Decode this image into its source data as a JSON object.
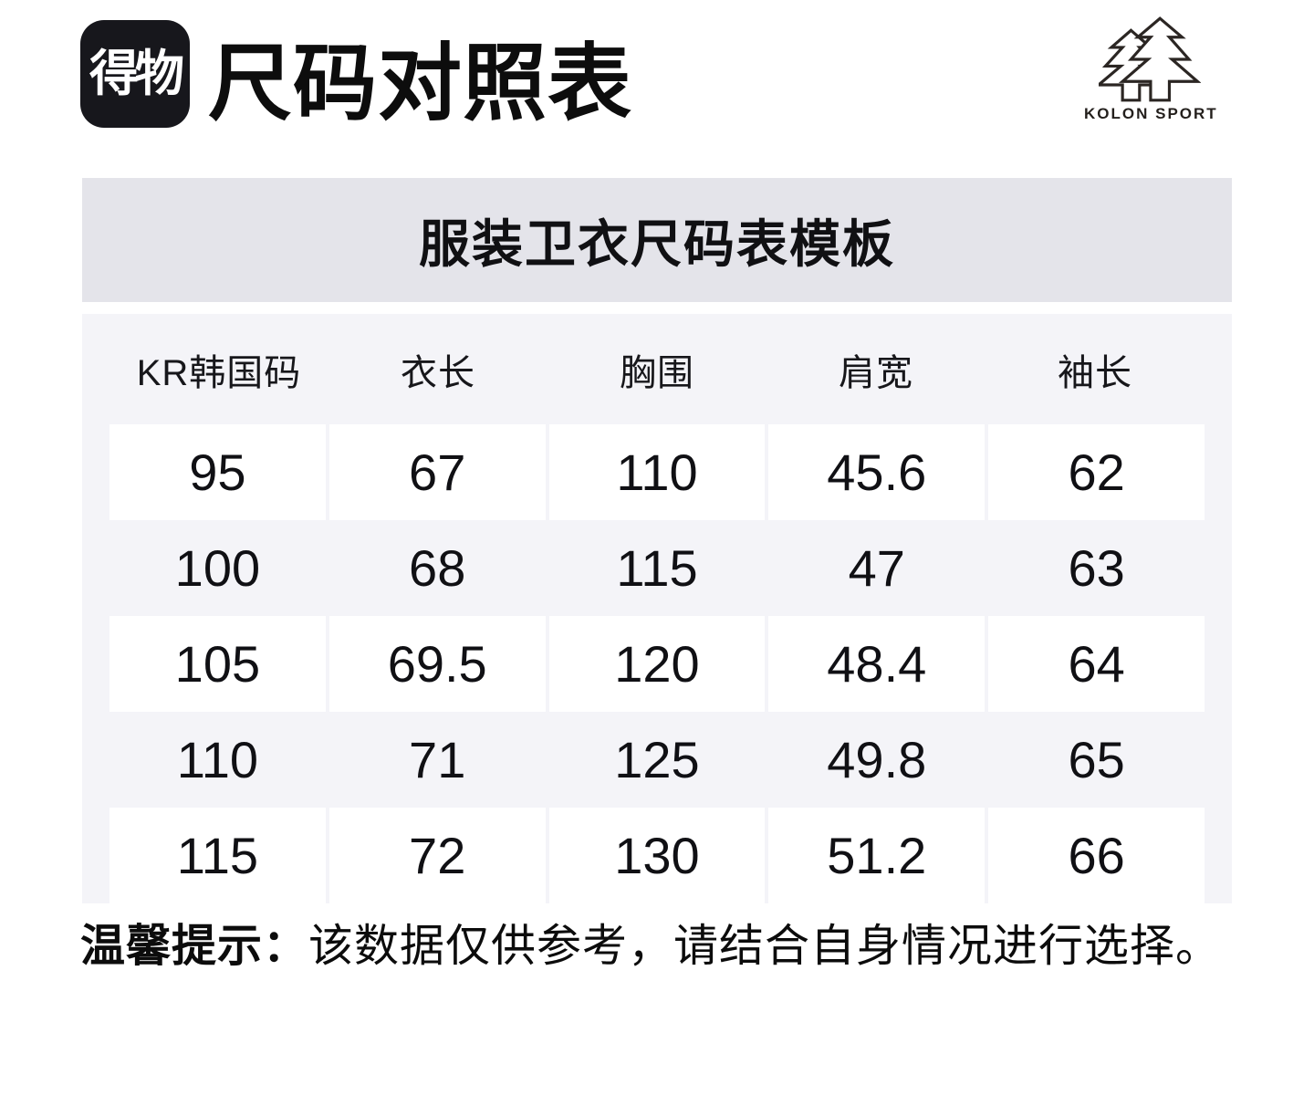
{
  "header": {
    "logo_text": "得物",
    "title": "尺码对照表",
    "brand_name": "KOLON SPORT"
  },
  "banner": {
    "title": "服装卫衣尺码表模板"
  },
  "table": {
    "columns": [
      "KR韩国码",
      "衣长",
      "胸围",
      "肩宽",
      "袖长"
    ],
    "rows": [
      [
        "95",
        "67",
        "110",
        "45.6",
        "62"
      ],
      [
        "100",
        "68",
        "115",
        "47",
        "63"
      ],
      [
        "105",
        "69.5",
        "120",
        "48.4",
        "64"
      ],
      [
        "110",
        "71",
        "125",
        "49.8",
        "65"
      ],
      [
        "115",
        "72",
        "130",
        "51.2",
        "66"
      ]
    ]
  },
  "footer": {
    "tip_label": "温馨提示：",
    "tip_text": "该数据仅供参考，请结合自身情况进行选择。"
  },
  "colors": {
    "banner_bg": "#e4e4ea",
    "table_bg": "#f4f4f8",
    "row_white": "#ffffff",
    "logo_bg": "#17171c",
    "text": "#101014",
    "brand_color": "#231f1c"
  }
}
